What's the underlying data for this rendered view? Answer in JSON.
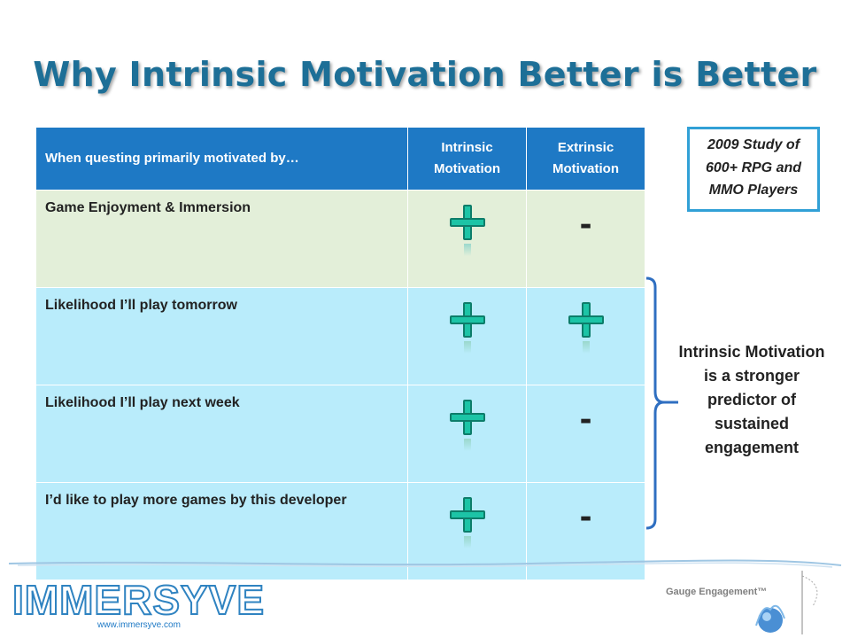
{
  "slide": {
    "title": "Why Intrinsic Motivation Better is Better"
  },
  "table": {
    "headers": [
      "When questing primarily motivated by…",
      "Intrinsic Motivation",
      "Extrinsic Motivation"
    ],
    "rows": [
      {
        "label": "Game Enjoyment & Immersion",
        "intrinsic": "+",
        "extrinsic": "-"
      },
      {
        "label": "Likelihood I’ll play tomorrow",
        "intrinsic": "+",
        "extrinsic": "+"
      },
      {
        "label": "Likelihood I’ll play next week",
        "intrinsic": "+",
        "extrinsic": "-"
      },
      {
        "label": "I’d like to play more games by this developer",
        "intrinsic": "+",
        "extrinsic": "-"
      }
    ]
  },
  "study_box": {
    "text": "2009 Study of 600+ RPG and MMO Players"
  },
  "conclusion": {
    "text": "Intrinsic Motivation is a stronger predictor of sustained engagement"
  },
  "footer": {
    "logo_text": "IMMERSYVE",
    "url": "www.immersyve.com",
    "gauge_label": "Gauge Engagement™"
  },
  "colors": {
    "title": "#1d6f97",
    "header_bg": "#1e79c5",
    "row_green": "#e3efd9",
    "row_blue": "#b9ecfb",
    "plus": "#1cc4a6",
    "bracket": "#2f6fc1"
  }
}
